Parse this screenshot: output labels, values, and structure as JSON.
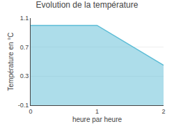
{
  "chart_data": {
    "type": "area",
    "title": "Evolution de la température",
    "x_label": "heure par heure",
    "y_label": "Température en °C",
    "x": [
      0,
      1,
      2
    ],
    "series": [
      {
        "color": "#5bbcd6",
        "values": [
          1.0,
          1.0,
          0.45
        ]
      }
    ],
    "xlim": [
      0,
      2
    ],
    "xticks": [
      0,
      1,
      2
    ],
    "ylim": [
      -0.1,
      1.1
    ],
    "yticks": [
      -0.1,
      0.3,
      0.7,
      1.1
    ],
    "grid": "y"
  }
}
